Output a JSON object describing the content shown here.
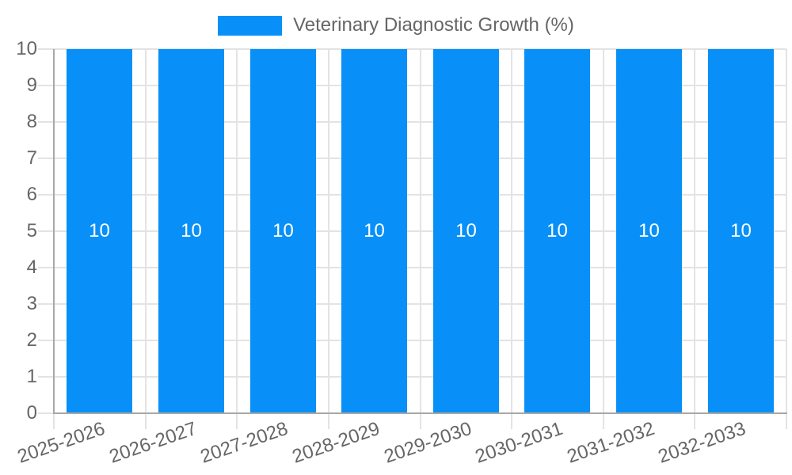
{
  "legend": {
    "label": "Veterinary Diagnostic Growth (%)"
  },
  "colors": {
    "bar": "#0890f8",
    "grid": "#e3e3e3",
    "axis": "#a8a8a8",
    "tick_text": "#666666",
    "value_label": "#ffffff"
  },
  "chart_data": {
    "type": "bar",
    "title": "Veterinary Diagnostic Growth (%)",
    "categories": [
      "2025-2026",
      "2026-2027",
      "2027-2028",
      "2028-2029",
      "2029-2030",
      "2030-2031",
      "2031-2032",
      "2032-2033"
    ],
    "series": [
      {
        "name": "Veterinary Diagnostic Growth (%)",
        "values": [
          10,
          10,
          10,
          10,
          10,
          10,
          10,
          10
        ]
      }
    ],
    "bar_value_labels": [
      10,
      10,
      10,
      10,
      10,
      10,
      10,
      10
    ],
    "xlabel": "",
    "ylabel": "",
    "ylim": [
      0,
      10
    ],
    "yticks": [
      0,
      1,
      2,
      3,
      4,
      5,
      6,
      7,
      8,
      9,
      10
    ],
    "grid": true,
    "legend_position": "top",
    "x_label_rotation_deg": -19
  }
}
